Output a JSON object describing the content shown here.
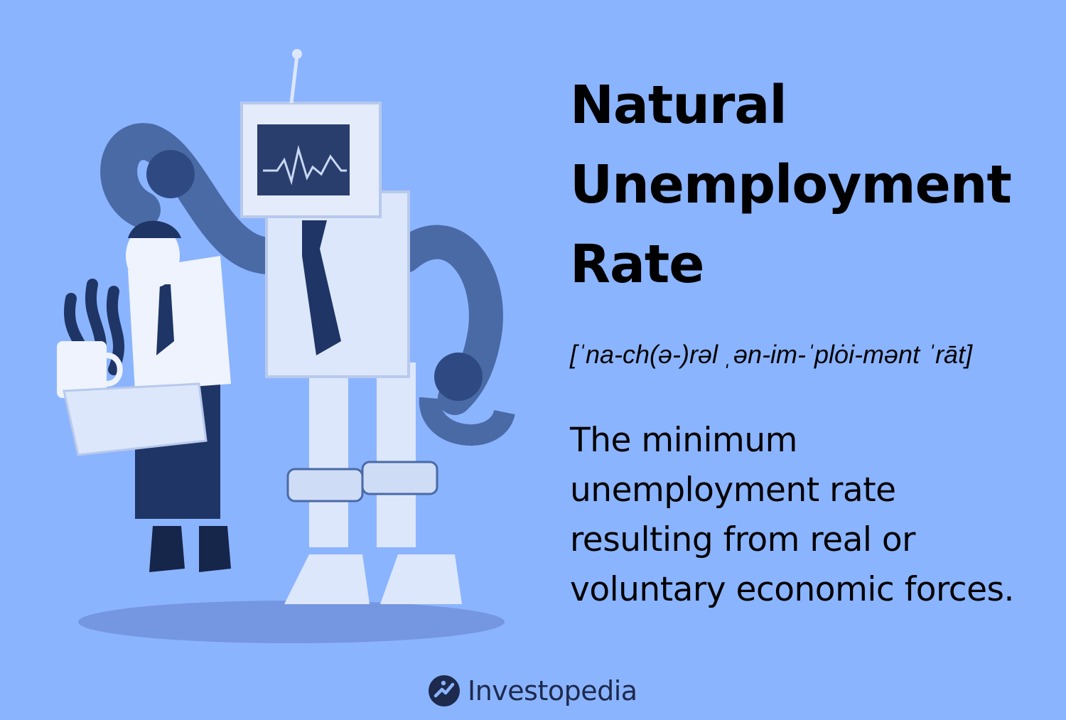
{
  "title": {
    "line1": "Natural",
    "line2": "Unemployment",
    "line3": "Rate"
  },
  "pronunciation": "[ˈna-ch(ə-)rəl ˌən-im-ˈplȯi-mənt ˈrāt]",
  "definition": {
    "line1": "The minimum",
    "line2": "unemployment rate",
    "line3": "resulting from real or",
    "line4": "voluntary economic forces."
  },
  "brand": {
    "name": "Investopedia",
    "logo_icon": "investopedia-logo-icon"
  },
  "illustration": {
    "subject": "robot-escorting-fired-office-worker-illustration"
  },
  "colors": {
    "background": "#8bb4ff",
    "text": "#000000",
    "brand_text": "#1d2a4d",
    "illustration_dark": "#3f5f9a",
    "illustration_light": "#dce7fb"
  }
}
